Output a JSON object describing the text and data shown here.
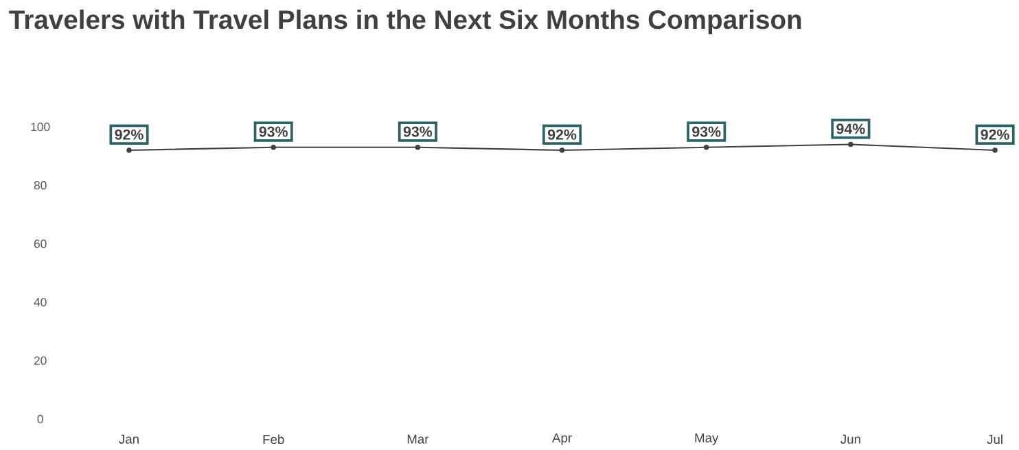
{
  "chart_data": {
    "type": "line",
    "title": "Travelers with Travel Plans in the Next Six Months Comparison",
    "categories": [
      "Jan",
      "Feb",
      "Mar",
      "Apr",
      "May",
      "Jun",
      "Jul"
    ],
    "values": [
      92,
      93,
      93,
      92,
      93,
      94,
      92
    ],
    "value_labels": [
      "92%",
      "93%",
      "93%",
      "92%",
      "93%",
      "94%",
      "92%"
    ],
    "color": "#404040",
    "marker": "circle",
    "ylim": [
      0,
      100
    ],
    "yticks": [
      0,
      20,
      40,
      60,
      80,
      100
    ]
  }
}
